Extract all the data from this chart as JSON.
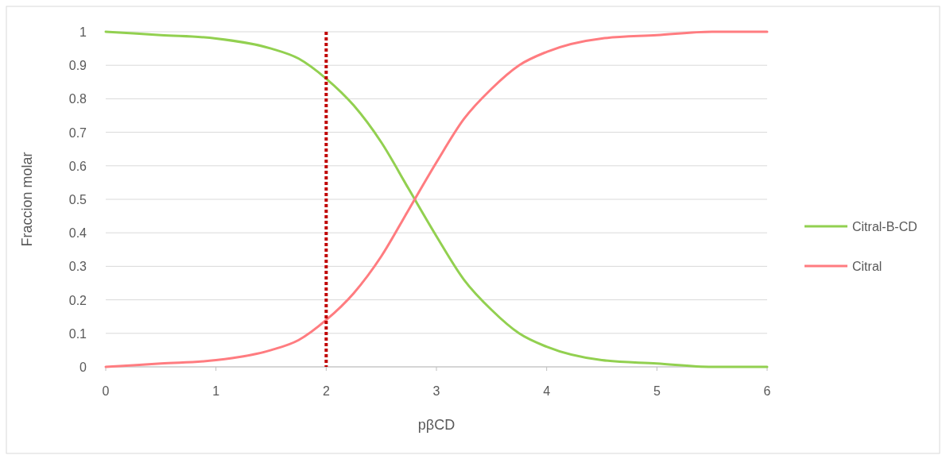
{
  "chart_data": {
    "type": "line",
    "xlabel": "pβCD",
    "ylabel": "Fraccion molar",
    "xlim": [
      0,
      6
    ],
    "ylim": [
      0,
      1
    ],
    "xticks": [
      0,
      1,
      2,
      3,
      4,
      5,
      6
    ],
    "yticks": [
      0,
      0.1,
      0.2,
      0.3,
      0.4,
      0.5,
      0.6,
      0.7,
      0.8,
      0.9,
      1
    ],
    "grid": "y",
    "legend": "right",
    "marker": "none",
    "line_style": "solid",
    "x": [
      0,
      0.5,
      1,
      1.5,
      1.75,
      2,
      2.25,
      2.5,
      2.75,
      3,
      3.25,
      3.5,
      3.75,
      4,
      4.5,
      5,
      5.5,
      6
    ],
    "series": [
      {
        "name": "Citral-B-CD",
        "color": "#92d050",
        "values": [
          1,
          0.99,
          0.98,
          0.95,
          0.92,
          0.86,
          0.78,
          0.67,
          0.53,
          0.39,
          0.26,
          0.17,
          0.1,
          0.06,
          0.02,
          0.01,
          0,
          0
        ]
      },
      {
        "name": "Citral",
        "color": "#ff7c80",
        "values": [
          0,
          0.01,
          0.02,
          0.05,
          0.08,
          0.14,
          0.22,
          0.33,
          0.47,
          0.61,
          0.74,
          0.83,
          0.9,
          0.94,
          0.98,
          0.99,
          1,
          1
        ]
      }
    ],
    "ref_lines": [
      {
        "axis": "x",
        "value": 2,
        "color": "#c00000",
        "line_style": "dotted"
      }
    ]
  }
}
